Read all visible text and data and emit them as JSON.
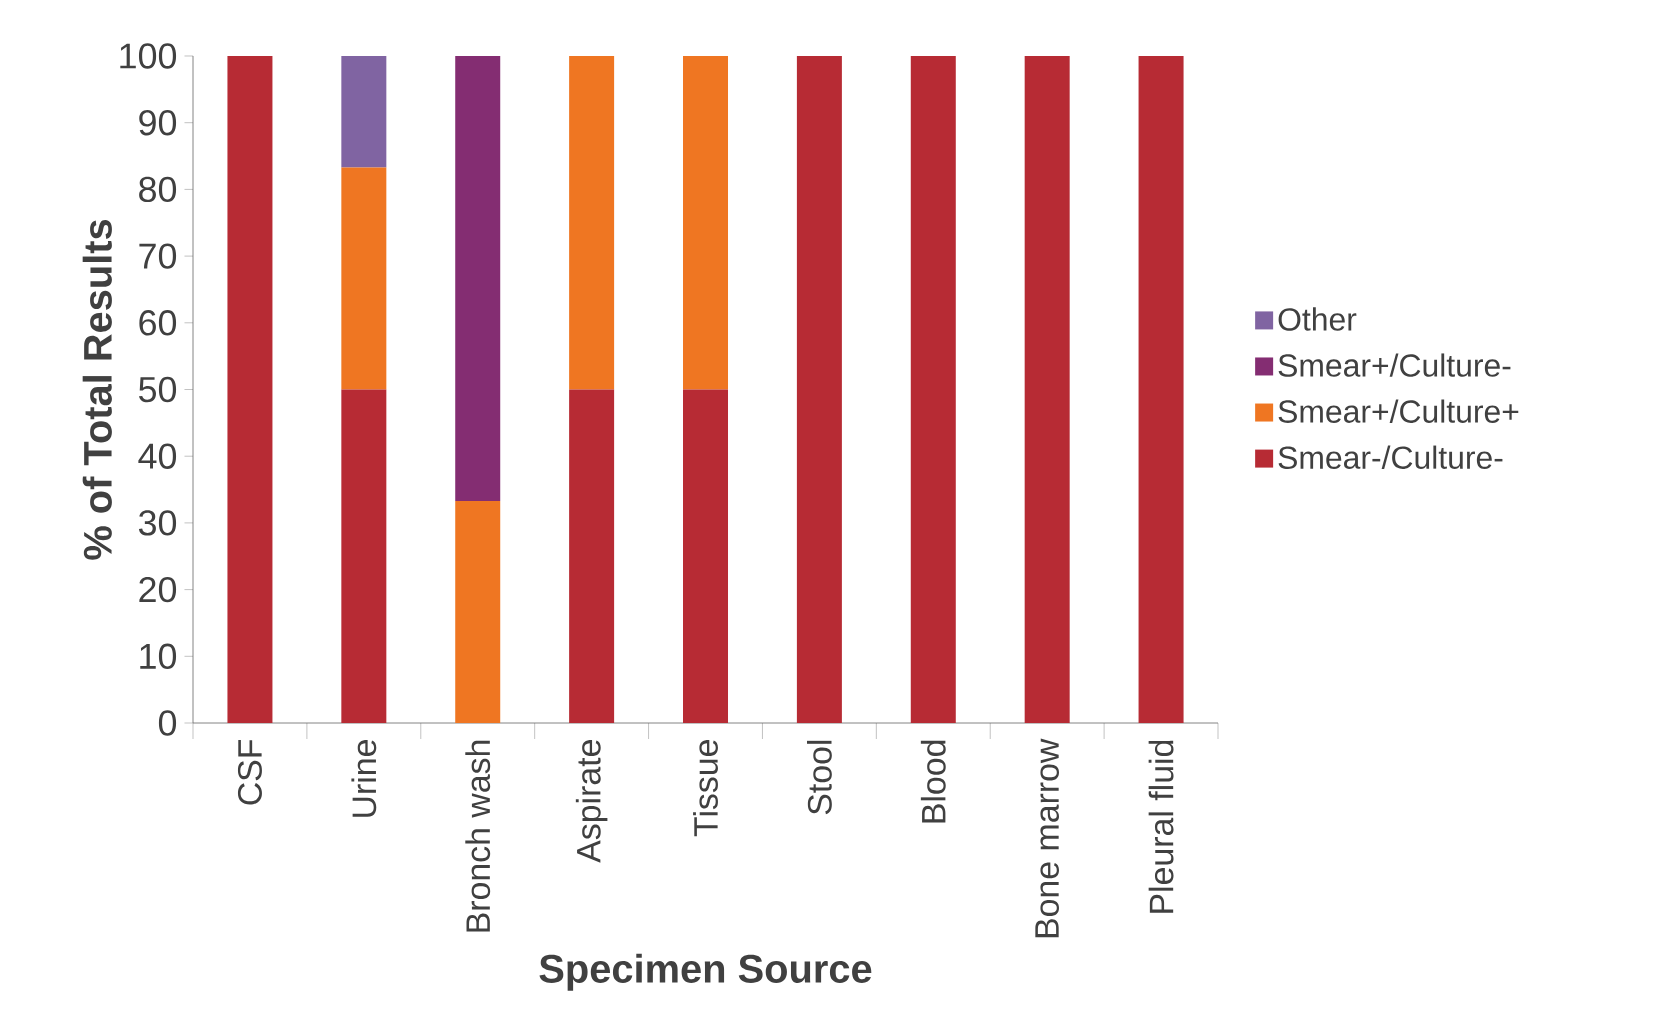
{
  "chart_data": {
    "type": "bar",
    "stacked": true,
    "xlabel": "Specimen Source",
    "ylabel": "% of Total Results",
    "categories": [
      "CSF",
      "Urine",
      "Bronch wash",
      "Aspirate",
      "Tissue",
      "Stool",
      "Blood",
      "Bone marrow",
      "Pleural fluid"
    ],
    "series": [
      {
        "name": "Smear-/Culture-",
        "color": "#b72b34",
        "values": [
          100,
          50,
          0,
          50,
          50,
          100,
          100,
          100,
          100
        ]
      },
      {
        "name": "Smear+/Culture+",
        "color": "#ef7622",
        "values": [
          0,
          33.3,
          33.3,
          50,
          50,
          0,
          0,
          0,
          0
        ]
      },
      {
        "name": "Smear+/Culture-",
        "color": "#842d72",
        "values": [
          0,
          0,
          66.7,
          0,
          0,
          0,
          0,
          0,
          0
        ]
      },
      {
        "name": "Other",
        "color": "#8064a2",
        "values": [
          0,
          16.7,
          0,
          0,
          0,
          0,
          0,
          0,
          0
        ]
      }
    ],
    "ylim": [
      0,
      100
    ],
    "yticks": [
      0,
      10,
      20,
      30,
      40,
      50,
      60,
      70,
      80,
      90,
      100
    ],
    "legend": "right"
  }
}
